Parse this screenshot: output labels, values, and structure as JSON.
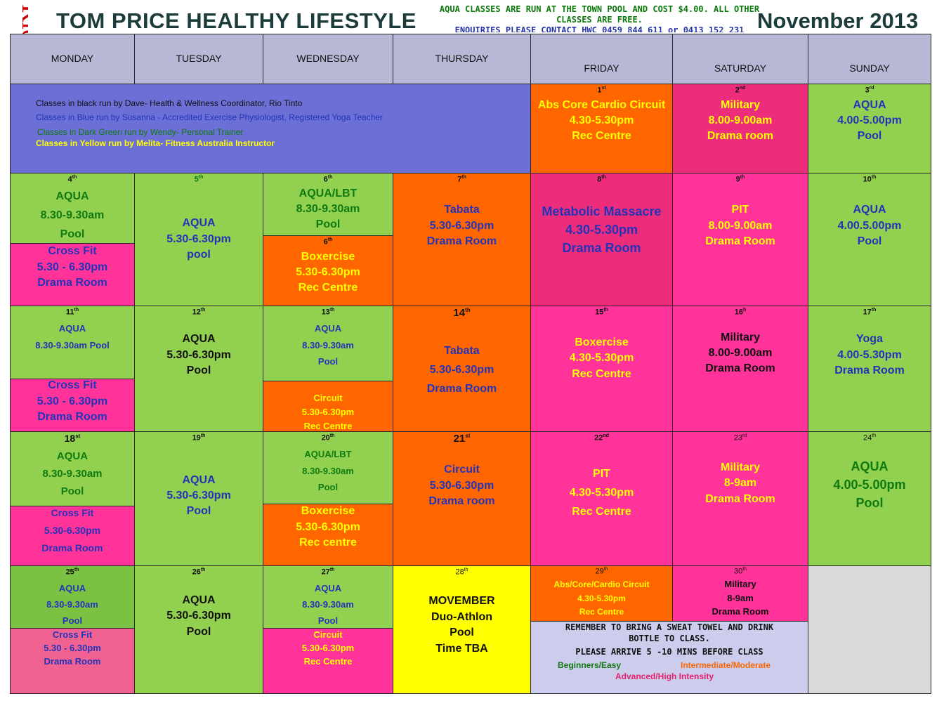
{
  "logo_text": "Rio Tinto",
  "title": "TOM PRICE HEALTHY LIFESTYLE",
  "notice": {
    "line1": "AQUA CLASSES ARE RUN AT THE TOWN POOL AND COST $4.00. ALL OTHER",
    "line2": "CLASSES ARE FREE.",
    "line3": "ENQUIRIES PLEASE CONTACT HWC 0459 844 611 or 0413 152 231"
  },
  "month": "November 2013",
  "days": [
    "MONDAY",
    "TUESDAY",
    "WEDNESDAY",
    "THURSDAY",
    "FRIDAY",
    "SATURDAY",
    "SUNDAY"
  ],
  "legend": [
    "Classes in black run by Dave- Health & Wellness Coordinator, Rio Tinto",
    "Classes in Blue run by Susanna - Accredited Exercise Physiologist, Registered Yoga Teacher",
    "Classes in Dark Green run by Wendy- Personal Trainer",
    "Classes in Yellow run by Melita- Fitness Australia Instructor"
  ],
  "cells": {
    "d1": {
      "n": "1",
      "s": "st",
      "l": [
        "Abs Core Cardio Circuit",
        "4.30-5.30pm",
        "Rec Centre"
      ]
    },
    "d2": {
      "n": "2",
      "s": "nd",
      "l": [
        "Military",
        "8.00-9.00am",
        "Drama room"
      ]
    },
    "d3": {
      "n": "3",
      "s": "rd",
      "l": [
        "AQUA",
        "4.00-5.00pm",
        "Pool"
      ]
    },
    "d4a": {
      "n": "4",
      "s": "th",
      "l": [
        "AQUA",
        "8.30-9.30am",
        "Pool"
      ]
    },
    "d4b": {
      "l": [
        "Cross Fit",
        "5.30 - 6.30pm",
        "Drama Room"
      ]
    },
    "d5": {
      "n": "5",
      "s": "th",
      "l": [
        "AQUA",
        "5.30-6.30pm",
        "pool"
      ]
    },
    "d6a": {
      "n": "6",
      "s": "th",
      "l": [
        "AQUA/LBT",
        "8.30-9.30am",
        "Pool"
      ]
    },
    "d6b": {
      "n": "6",
      "s": "th",
      "l": [
        "Boxercise",
        "5.30-6.30pm",
        "Rec Centre"
      ]
    },
    "d7": {
      "n": "7",
      "s": "th",
      "l": [
        "Tabata",
        "5.30-6.30pm",
        "Drama Room"
      ]
    },
    "d8": {
      "n": "8",
      "s": "th",
      "l": [
        "Metabolic Massacre",
        "4.30-5.30pm",
        "Drama Room"
      ]
    },
    "d9": {
      "n": "9",
      "s": "th",
      "l": [
        "PIT",
        "8.00-9.00am",
        "Drama Room"
      ]
    },
    "d10": {
      "n": "10",
      "s": "th",
      "l": [
        "AQUA",
        "4.00.5.00pm",
        "Pool"
      ]
    },
    "d11a": {
      "n": "11",
      "s": "th",
      "l": [
        "AQUA",
        "8.30-9.30am Pool"
      ]
    },
    "d11b": {
      "l": [
        "Cross Fit",
        "5.30 - 6.30pm",
        "Drama Room"
      ]
    },
    "d12": {
      "n": "12",
      "s": "th",
      "l": [
        "AQUA",
        "5.30-6.30pm",
        "Pool"
      ]
    },
    "d13a": {
      "n": "13",
      "s": "th",
      "l": [
        "AQUA",
        "8.30-9.30am",
        "Pool"
      ]
    },
    "d13b": {
      "l": [
        "Circuit",
        "5.30-6.30pm",
        "Rec Centre"
      ]
    },
    "d14": {
      "n": "14",
      "s": "th",
      "l": [
        "Tabata",
        "5.30-6.30pm",
        "Drama Room"
      ]
    },
    "d15": {
      "n": "15",
      "s": "th",
      "l": [
        "Boxercise",
        "4.30-5.30pm",
        "Rec Centre"
      ]
    },
    "d16": {
      "n": "16",
      "s": "h",
      "l": [
        "Military",
        "8.00-9.00am",
        "Drama Room"
      ]
    },
    "d17": {
      "n": "17",
      "s": "th",
      "l": [
        "Yoga",
        "4.00-5.30pm",
        "Drama Room"
      ]
    },
    "d18a": {
      "n": "18",
      "s": "st",
      "l": [
        "AQUA",
        "8.30-9.30am",
        "Pool"
      ]
    },
    "d18b": {
      "l": [
        "Cross Fit",
        "5.30-6.30pm",
        "Drama Room"
      ]
    },
    "d19": {
      "n": "19",
      "s": "th",
      "l": [
        "AQUA",
        "5.30-6.30pm",
        "Pool"
      ]
    },
    "d20a": {
      "n": "20",
      "s": "th",
      "l": [
        "AQUA/LBT",
        "8.30-9.30am",
        "Pool"
      ]
    },
    "d20b": {
      "l": [
        "Boxercise",
        "5.30-6.30pm",
        "Rec centre"
      ]
    },
    "d21": {
      "n": "21",
      "s": "st",
      "l": [
        "Circuit",
        "5.30-6.30pm",
        "Drama room"
      ]
    },
    "d22": {
      "n": "22",
      "s": "nd",
      "l": [
        "PIT",
        "4.30-5.30pm",
        "Rec Centre"
      ]
    },
    "d23": {
      "n": "23",
      "s": "rd",
      "l": [
        "Military",
        "8-9am",
        "Drama Room"
      ]
    },
    "d24": {
      "n": "24",
      "s": "th",
      "l": [
        "AQUA",
        "4.00-5.00pm",
        "Pool"
      ]
    },
    "d25a": {
      "n": "25",
      "s": "th",
      "l": [
        "AQUA",
        "8.30-9.30am",
        "Pool"
      ]
    },
    "d25b": {
      "l": [
        "Cross Fit",
        "5.30 - 6.30pm",
        "Drama Room"
      ]
    },
    "d26": {
      "n": "26",
      "s": "th",
      "l": [
        "AQUA",
        "5.30-6.30pm",
        "Pool"
      ]
    },
    "d27a": {
      "n": "27",
      "s": "th",
      "l": [
        "AQUA",
        "8.30-9.30am",
        "Pool"
      ]
    },
    "d27b": {
      "l": [
        "Circuit",
        "5.30-6.30pm",
        "Rec Centre"
      ]
    },
    "d28": {
      "n": "28",
      "s": "th",
      "l": [
        "MOVEMBER",
        "Duo-Athlon",
        "Pool",
        "Time TBA"
      ]
    },
    "d29": {
      "n": "29",
      "s": "th",
      "l": [
        "Abs/Core/Cardio Circuit",
        "4.30-5.30pm",
        "Rec Centre"
      ]
    },
    "d30": {
      "n": "30",
      "s": "th",
      "l": [
        "Military",
        "8-9am",
        "Drama Room"
      ]
    }
  },
  "reminder": {
    "line1": "REMEMBER TO BRING A SWEAT TOWEL AND DRINK",
    "line2": "BOTTLE TO CLASS.",
    "line3": "PLEASE ARRIVE 5 -10 MINS BEFORE CLASS",
    "beginners": "Beginners/Easy",
    "intermediate": "Intermediate/Moderate",
    "advanced": "Advanced/High Intensity"
  },
  "colors": {
    "header": "#b7b8d6",
    "green": "#92d050",
    "orange": "#ff6600",
    "pink": "#ff3399",
    "yellow": "#ffff00",
    "blue_banner": "#6b6fd6",
    "text_green": "#0f7a0f",
    "text_blue": "#2433b8",
    "text_yellow": "#ffff00",
    "logo_red": "#cc0000"
  }
}
